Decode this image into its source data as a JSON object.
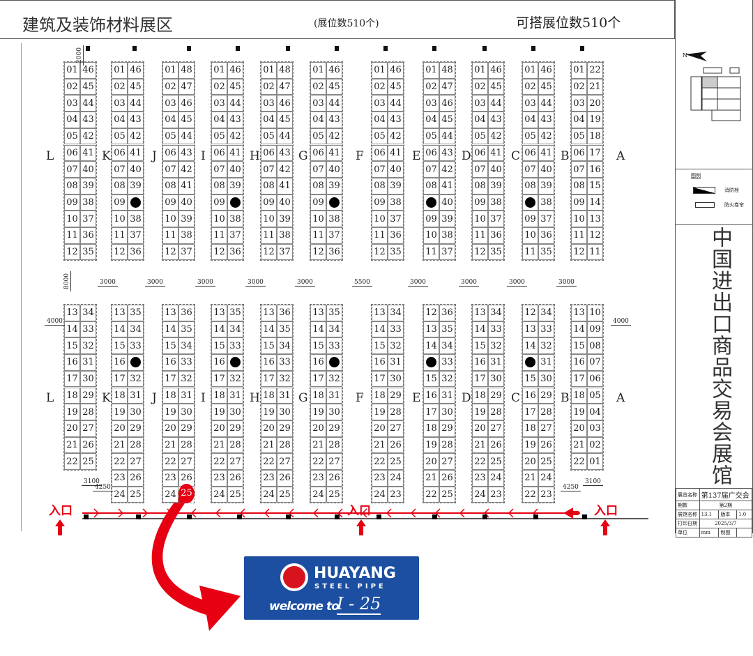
{
  "header": {
    "title": "建筑及装饰材料展区",
    "booth_count_note": "(展位数510个)",
    "available_note": "可搭展位数510个"
  },
  "rows_labels": [
    "L",
    "K",
    "J",
    "I",
    "H",
    "G",
    "F",
    "E",
    "D",
    "C",
    "B",
    "A"
  ],
  "columns": [
    {
      "top": {
        "left": [
          "01",
          "02",
          "03",
          "04",
          "05",
          "06",
          "07",
          "08",
          "09",
          "10",
          "11",
          "12"
        ],
        "right": [
          "46",
          "45",
          "44",
          "43",
          "42",
          "41",
          "40",
          "39",
          "38",
          "37",
          "36",
          "35"
        ]
      },
      "bottom": {
        "left": [
          "13",
          "14",
          "15",
          "16",
          "17",
          "18",
          "19",
          "20",
          "21",
          "22"
        ],
        "right": [
          "34",
          "33",
          "32",
          "31",
          "30",
          "29",
          "28",
          "27",
          "26",
          "25"
        ]
      }
    },
    {
      "top": {
        "left": [
          "01",
          "02",
          "03",
          "04",
          "05",
          "06",
          "07",
          "08",
          "09",
          "10",
          "11",
          "12"
        ],
        "right": [
          "46",
          "45",
          "44",
          "43",
          "42",
          "41",
          "40",
          "39",
          "●",
          "38",
          "37",
          "36"
        ]
      },
      "bottom": {
        "left": [
          "13",
          "14",
          "15",
          "16",
          "17",
          "18",
          "19",
          "20",
          "21",
          "22",
          "23",
          "24"
        ],
        "right": [
          "35",
          "34",
          "33",
          "●",
          "32",
          "31",
          "30",
          "29",
          "28",
          "27",
          "26",
          "25"
        ]
      }
    },
    {
      "top": {
        "left": [
          "01",
          "02",
          "03",
          "04",
          "05",
          "06",
          "07",
          "08",
          "09",
          "10",
          "11",
          "12"
        ],
        "right": [
          "48",
          "47",
          "46",
          "45",
          "44",
          "43",
          "42",
          "41",
          "40",
          "39",
          "38",
          "37"
        ]
      },
      "bottom": {
        "left": [
          "13",
          "14",
          "15",
          "16",
          "17",
          "18",
          "19",
          "20",
          "21",
          "22",
          "23",
          "24"
        ],
        "right": [
          "36",
          "35",
          "34",
          "33",
          "32",
          "31",
          "30",
          "29",
          "28",
          "27",
          "26",
          "25"
        ]
      }
    },
    {
      "top": {
        "left": [
          "01",
          "02",
          "03",
          "04",
          "05",
          "06",
          "07",
          "08",
          "09",
          "10",
          "11",
          "12"
        ],
        "right": [
          "46",
          "45",
          "44",
          "43",
          "42",
          "41",
          "40",
          "39",
          "●",
          "38",
          "37",
          "36"
        ]
      },
      "bottom": {
        "left": [
          "13",
          "14",
          "15",
          "16",
          "17",
          "18",
          "19",
          "20",
          "21",
          "22",
          "23",
          "24"
        ],
        "right": [
          "35",
          "34",
          "33",
          "●",
          "32",
          "31",
          "30",
          "29",
          "28",
          "27",
          "26",
          "25"
        ]
      }
    },
    {
      "top": {
        "left": [
          "01",
          "02",
          "03",
          "04",
          "05",
          "06",
          "07",
          "08",
          "09",
          "10",
          "11",
          "12"
        ],
        "right": [
          "48",
          "47",
          "46",
          "45",
          "44",
          "43",
          "42",
          "41",
          "40",
          "39",
          "38",
          "37"
        ]
      },
      "bottom": {
        "left": [
          "13",
          "14",
          "15",
          "16",
          "17",
          "18",
          "19",
          "20",
          "21",
          "22",
          "23",
          "24"
        ],
        "right": [
          "36",
          "35",
          "34",
          "33",
          "32",
          "31",
          "30",
          "29",
          "28",
          "27",
          "26",
          "25"
        ]
      }
    },
    {
      "top": {
        "left": [
          "01",
          "02",
          "03",
          "04",
          "05",
          "06",
          "07",
          "08",
          "09",
          "10",
          "11",
          "12"
        ],
        "right": [
          "46",
          "45",
          "44",
          "43",
          "42",
          "41",
          "40",
          "39",
          "●",
          "38",
          "37",
          "36"
        ]
      },
      "bottom": {
        "left": [
          "13",
          "14",
          "15",
          "16",
          "17",
          "18",
          "19",
          "20",
          "21",
          "22",
          "23",
          "24"
        ],
        "right": [
          "35",
          "34",
          "33",
          "●",
          "32",
          "31",
          "30",
          "29",
          "28",
          "27",
          "26",
          "25"
        ]
      }
    },
    {
      "top": {
        "left": [
          "01",
          "02",
          "03",
          "04",
          "05",
          "06",
          "07",
          "08",
          "09",
          "10",
          "11",
          "12"
        ],
        "right": [
          "46",
          "45",
          "44",
          "43",
          "42",
          "41",
          "40",
          "39",
          "38",
          "37",
          "36",
          "35"
        ]
      },
      "bottom": {
        "left": [
          "13",
          "14",
          "15",
          "16",
          "17",
          "18",
          "19",
          "20",
          "21",
          "22",
          "23",
          "24"
        ],
        "right": [
          "34",
          "33",
          "32",
          "31",
          "30",
          "29",
          "28",
          "27",
          "26",
          "25",
          "24",
          "23"
        ]
      }
    },
    {
      "top": {
        "left": [
          "01",
          "02",
          "03",
          "04",
          "05",
          "06",
          "07",
          "08",
          "●",
          "09",
          "10",
          "11"
        ],
        "right": [
          "48",
          "47",
          "46",
          "45",
          "44",
          "43",
          "42",
          "41",
          "40",
          "39",
          "38",
          "37"
        ]
      },
      "bottom": {
        "left": [
          "12",
          "13",
          "14",
          "●",
          "15",
          "16",
          "17",
          "18",
          "19",
          "20",
          "21",
          "22"
        ],
        "right": [
          "36",
          "35",
          "34",
          "33",
          "32",
          "31",
          "30",
          "29",
          "28",
          "27",
          "26",
          "25"
        ]
      }
    },
    {
      "top": {
        "left": [
          "01",
          "02",
          "03",
          "04",
          "05",
          "06",
          "07",
          "08",
          "09",
          "10",
          "11",
          "12"
        ],
        "right": [
          "46",
          "45",
          "44",
          "43",
          "42",
          "41",
          "40",
          "39",
          "38",
          "37",
          "36",
          "35"
        ]
      },
      "bottom": {
        "left": [
          "13",
          "14",
          "15",
          "16",
          "17",
          "18",
          "19",
          "20",
          "21",
          "22",
          "23",
          "24"
        ],
        "right": [
          "34",
          "33",
          "32",
          "31",
          "30",
          "29",
          "28",
          "27",
          "26",
          "25",
          "24",
          "23"
        ]
      }
    },
    {
      "top": {
        "left": [
          "01",
          "02",
          "03",
          "04",
          "05",
          "06",
          "07",
          "08",
          "●",
          "09",
          "10",
          "11"
        ],
        "right": [
          "46",
          "45",
          "44",
          "43",
          "42",
          "41",
          "40",
          "39",
          "38",
          "37",
          "36",
          "35"
        ]
      },
      "bottom": {
        "left": [
          "12",
          "13",
          "14",
          "●",
          "15",
          "16",
          "17",
          "18",
          "19",
          "20",
          "21",
          "22"
        ],
        "right": [
          "34",
          "33",
          "32",
          "31",
          "30",
          "29",
          "28",
          "27",
          "26",
          "25",
          "24",
          "23"
        ]
      }
    },
    {
      "top": {
        "left": [
          "01",
          "02",
          "03",
          "04",
          "05",
          "06",
          "07",
          "08",
          "09",
          "10",
          "11",
          "12"
        ],
        "right": [
          "22",
          "21",
          "20",
          "19",
          "18",
          "17",
          "16",
          "15",
          "14",
          "13",
          "12",
          "11"
        ]
      },
      "bottom": {
        "left": [
          "13",
          "14",
          "15",
          "16",
          "17",
          "18",
          "19",
          "20",
          "21",
          "22"
        ],
        "right": [
          "10",
          "09",
          "08",
          "07",
          "06",
          "05",
          "04",
          "03",
          "02",
          "01"
        ]
      }
    }
  ],
  "highlight": {
    "column": 3,
    "booth": "25",
    "color": "#e60012"
  },
  "aisle_dims": [
    "3000",
    "3000",
    "3000",
    "3000",
    "3000",
    "5500",
    "3000",
    "3000",
    "3000",
    "3000"
  ],
  "side_dims": {
    "vertical": "8000",
    "left": "4000",
    "right": "4000",
    "top": "2000",
    "door_left": "3100",
    "door_left_w": "4250",
    "door_right": "3100",
    "door_right_w": "4250"
  },
  "entrances": [
    "入口",
    "入口",
    "入口"
  ],
  "legend": {
    "title": "图例",
    "hydrant": "消防栓",
    "fire_shutter": "防火卷帘"
  },
  "venue_title": "中国进出口商品交易会展馆",
  "info": {
    "exhibition_label": "展览名称",
    "exhibition": "第137届广交会",
    "phase_label": "期数",
    "phase": "第2期",
    "hall_label": "展馆名称",
    "hall": "13.1",
    "version_label": "版本",
    "version": "1.0",
    "date_label": "打印日期",
    "date": "2025/3/7",
    "unit_label": "单位",
    "unit": "mm",
    "drawn_label": "制图"
  },
  "logo": {
    "brand": "HUAYANG",
    "sub": "STEEL PIPE",
    "welcome": "welcome to",
    "booth": "I - 25",
    "bg": "#1c4fa1"
  },
  "colors": {
    "accent": "#e60012"
  }
}
